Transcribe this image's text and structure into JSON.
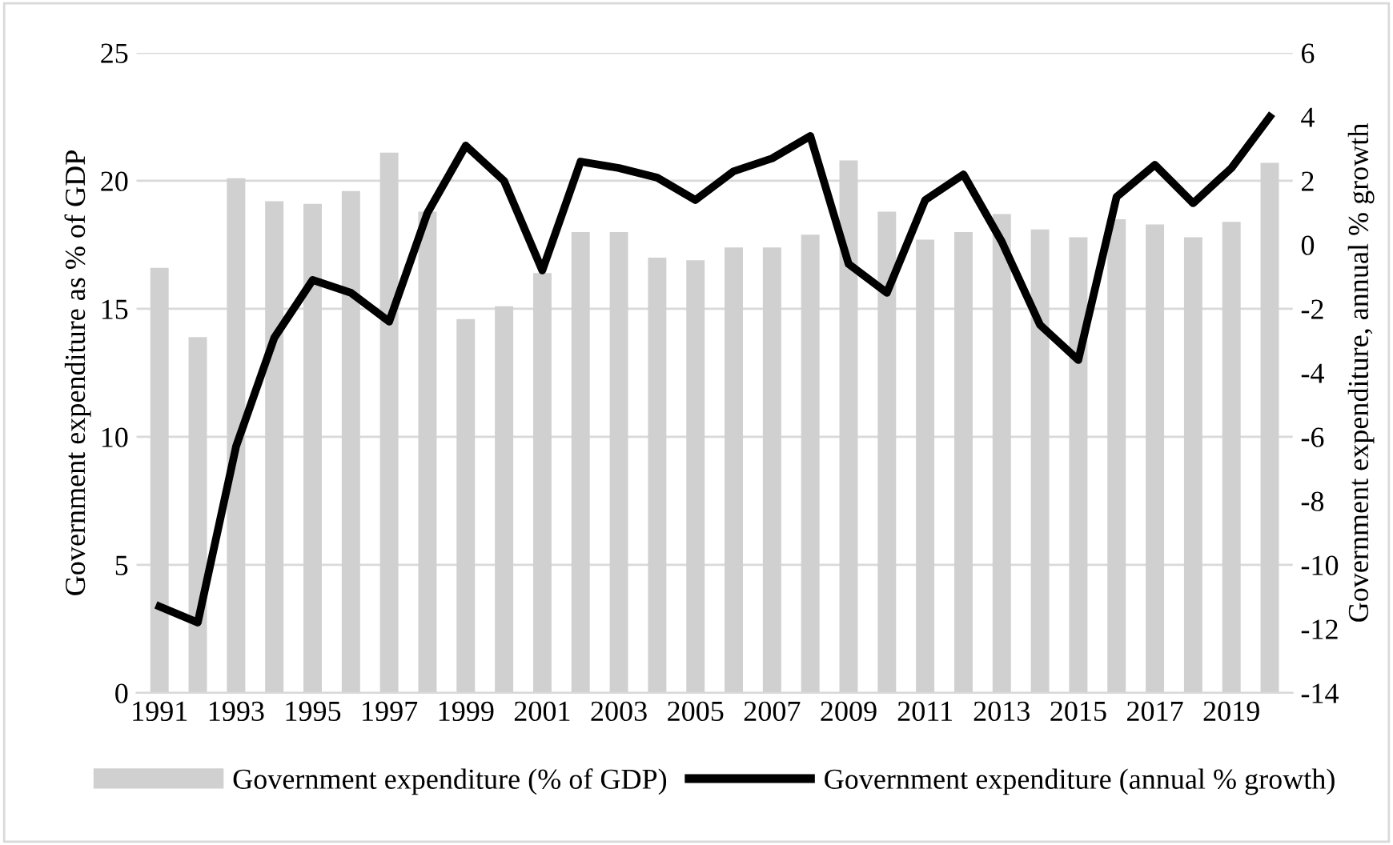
{
  "chart_data": {
    "type": "bar",
    "ylabel": "Government expenditure as % of GDP",
    "y2label": "Government expenditure, annual % growth",
    "categories": [
      "1991",
      null,
      "1993",
      null,
      "1995",
      null,
      "1997",
      null,
      "1999",
      null,
      "2001",
      null,
      "2003",
      null,
      "2005",
      null,
      "2007",
      null,
      "2009",
      null,
      "2011",
      null,
      "2013",
      null,
      "2015",
      null,
      "2017",
      null,
      "2019",
      null
    ],
    "series": [
      {
        "name": "Government expenditure (% of GDP)",
        "color": "#d0d0d0",
        "values": [
          16.6,
          13.9,
          20.1,
          19.2,
          19.1,
          19.6,
          21.1,
          18.8,
          14.6,
          15.1,
          16.4,
          18.0,
          18.0,
          17.0,
          16.9,
          17.4,
          17.4,
          17.9,
          20.8,
          18.8,
          17.7,
          18.0,
          18.7,
          18.1,
          17.8,
          18.5,
          18.3,
          17.8,
          18.4,
          20.7
        ]
      },
      {
        "name": "Government expenditure (annual % growth)",
        "type": "line",
        "axis": "y2",
        "color": "#000000",
        "values": [
          -11.3,
          -11.8,
          -6.3,
          -2.9,
          -1.1,
          -1.5,
          -2.4,
          1.0,
          3.1,
          2.0,
          -0.8,
          2.6,
          2.4,
          2.1,
          1.4,
          2.3,
          2.7,
          3.4,
          -0.6,
          -1.5,
          1.4,
          2.2,
          0.1,
          -2.5,
          -3.6,
          1.5,
          2.5,
          1.3,
          2.4,
          4.0
        ]
      }
    ],
    "ylim": [
      0,
      25
    ],
    "yticks": [
      0,
      5,
      10,
      15,
      20,
      25
    ],
    "y2lim": [
      -14,
      6
    ],
    "y2ticks": [
      -14,
      -12,
      -10,
      -8,
      -6,
      -4,
      -2,
      0,
      2,
      4,
      6
    ],
    "grid": "y",
    "legend": "bottom"
  }
}
